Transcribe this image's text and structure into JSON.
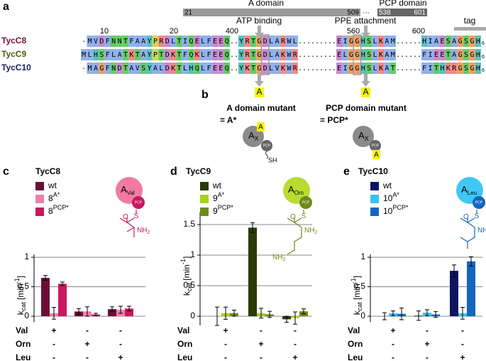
{
  "panel_labels": [
    "a",
    "b",
    "c",
    "d",
    "e"
  ],
  "alignment": {
    "domains": {
      "a_domain": "A domain",
      "a_start": "21",
      "a_end": "509",
      "pcp_domain": "PCP domain",
      "pcp_start": "538",
      "pcp_end": "601",
      "tag": "tag"
    },
    "annotations": [
      "ATP binding",
      "PPE attachment"
    ],
    "positions": [
      "10",
      "20",
      "400",
      "560",
      "600"
    ],
    "rows": [
      {
        "name": "TycC8",
        "color": "#7a1040",
        "sequence": "-MVDFNNTFAAYPRDLTIQELFEEQ..YRTGDLARWL.........EIGGHSLKAM......HIAESAGSGH",
        "tag_sub": "6"
      },
      {
        "name": "TycC9",
        "color": "#4a5a10",
        "sequence": "MLHSFLATKTAYPTDKTFQKLFEEQ..YRTGDLAKWR.........ELGGHSLKAM......FIEETAGSGH",
        "tag_sub": "6"
      },
      {
        "name": "TycC10",
        "color": "#1a2070",
        "sequence": "-MAGFNDTAVSYALDKTLHQLFEEQ..YKTGDLVKWR.........EIGGHSLKAT......FITHKRGSGH",
        "tag_sub": "6"
      }
    ],
    "mutation": "A"
  },
  "schematic": {
    "a_mutant": "A domain mutant",
    "a_eq": "= A*",
    "pcp_mutant": "PCP domain mutant",
    "pcp_eq": "= PCP*",
    "domain": "A",
    "domain_sub": "X",
    "pcp": "PCP",
    "sh": "SH",
    "mutation": "A"
  },
  "chart_data": [
    {
      "type": "bar",
      "title": "TycC8",
      "ylabel_parts": [
        "k",
        "cat",
        " [min",
        "-1",
        "]"
      ],
      "conditions": [
        {
          "name": "Val",
          "marks": [
            "+",
            "-",
            "-"
          ]
        },
        {
          "name": "Orn",
          "marks": [
            "-",
            "+",
            "-"
          ]
        },
        {
          "name": "Leu",
          "marks": [
            "-",
            "-",
            "+"
          ]
        }
      ],
      "series": [
        {
          "name": "wt",
          "color": "#6b0f3a",
          "values": [
            0.65,
            0.08,
            0.12
          ],
          "errors": [
            0.04,
            0.05,
            0.04
          ]
        },
        {
          "name": "8",
          "name_sup": "A*",
          "color": "#f07fa8",
          "values": [
            0.05,
            0.08,
            0.11
          ],
          "errors": [
            0.1,
            0.08,
            0.06
          ]
        },
        {
          "name": "8",
          "name_sup": "PCP*",
          "color": "#c8185f",
          "values": [
            0.55,
            0.03,
            0.13
          ],
          "errors": [
            0.03,
            0.02,
            0.04
          ]
        }
      ],
      "ylim": [
        -0.1,
        1.05
      ],
      "yticks": [
        0,
        0.5,
        1
      ],
      "grid": true,
      "module": "A",
      "module_sub": "Val",
      "pcp": "PCP",
      "chem": [
        {
          "text": "O"
        },
        {
          "text": "S"
        },
        {
          "text": "NH",
          "sub": "2"
        }
      ]
    },
    {
      "type": "bar",
      "title": "TycC9",
      "ylabel_parts": [
        "k",
        "cat",
        " [min",
        "-1",
        "]"
      ],
      "conditions": [
        {
          "name": "Val",
          "marks": [
            "+",
            "-",
            "-"
          ]
        },
        {
          "name": "Orn",
          "marks": [
            "-",
            "+",
            "-"
          ]
        },
        {
          "name": "Leu",
          "marks": [
            "-",
            "-",
            "+"
          ]
        }
      ],
      "series": [
        {
          "name": "wt",
          "color": "#2a3a05",
          "values": [
            0.0,
            1.45,
            -0.05
          ],
          "errors": [
            0.15,
            0.08,
            0.05
          ]
        },
        {
          "name": "9",
          "name_sup": "A*",
          "color": "#a8d21a",
          "values": [
            0.05,
            0.05,
            -0.03
          ],
          "errors": [
            0.1,
            0.08,
            0.1
          ]
        },
        {
          "name": "9",
          "name_sup": "PCP*",
          "color": "#6c8a1a",
          "values": [
            0.05,
            0.03,
            0.08
          ],
          "errors": [
            0.05,
            0.05,
            0.04
          ]
        }
      ],
      "ylim": [
        -0.15,
        1.7
      ],
      "yticks": [
        0,
        0.5,
        1,
        1.5
      ],
      "grid": true,
      "module": "A",
      "module_sub": "Orn",
      "pcp": "PCP",
      "chem": [
        {
          "text": "O"
        },
        {
          "text": "S"
        },
        {
          "text": "NH",
          "sub": "2"
        },
        {
          "text": "NH",
          "sub": "2"
        }
      ]
    },
    {
      "type": "bar",
      "title": "TycC10",
      "ylabel_parts": [
        "k",
        "cat",
        " [min",
        "-1",
        "]"
      ],
      "conditions": [
        {
          "name": "Val",
          "marks": [
            "+",
            "-",
            "-"
          ]
        },
        {
          "name": "Orn",
          "marks": [
            "-",
            "+",
            "-"
          ]
        },
        {
          "name": "Leu",
          "marks": [
            "-",
            "-",
            "+"
          ]
        }
      ],
      "series": [
        {
          "name": "wt",
          "color": "#0c1560",
          "values": [
            0.0,
            0.01,
            0.77
          ],
          "errors": [
            0.06,
            0.08,
            0.1
          ]
        },
        {
          "name": "10",
          "name_sup": "A*",
          "color": "#3cc0f0",
          "values": [
            0.05,
            0.06,
            0.05
          ],
          "errors": [
            0.04,
            0.05,
            0.1
          ]
        },
        {
          "name": "10",
          "name_sup": "PCP*",
          "color": "#1565c0",
          "values": [
            0.04,
            0.03,
            0.93
          ],
          "errors": [
            0.1,
            0.05,
            0.08
          ]
        }
      ],
      "ylim": [
        -0.1,
        1.05
      ],
      "yticks": [
        0,
        0.5,
        1
      ],
      "grid": true,
      "module": "A",
      "module_sub": "Leu",
      "pcp": "PCP",
      "chem": [
        {
          "text": "O"
        },
        {
          "text": "S"
        },
        {
          "text": "NH",
          "sub": "2"
        }
      ]
    }
  ]
}
